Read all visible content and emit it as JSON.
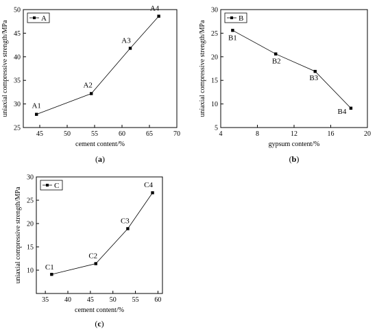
{
  "chart_data": [
    {
      "type": "line",
      "panel_label": "(a)",
      "panel_prefix": "(",
      "panel_letter": "a",
      "panel_suffix": ")",
      "xlabel": "cement content/%",
      "ylabel": "uniaxial compressive strength/MPa",
      "xlim": [
        42,
        70
      ],
      "ylim": [
        25,
        50
      ],
      "xticks": [
        45,
        50,
        55,
        60,
        65,
        70
      ],
      "yticks": [
        25,
        30,
        35,
        40,
        45,
        50
      ],
      "legend_position": "top-left",
      "series": [
        {
          "name": "A",
          "x": [
            44.4,
            54.4,
            61.5,
            66.7
          ],
          "y": [
            27.8,
            32.2,
            41.8,
            48.6
          ],
          "point_labels": [
            "A1",
            "A2",
            "A3",
            "A4"
          ]
        }
      ]
    },
    {
      "type": "line",
      "panel_label": "(b)",
      "panel_prefix": "(",
      "panel_letter": "b",
      "panel_suffix": ")",
      "xlabel": "gypsum content/%",
      "ylabel": "uniaxial compressive strength/MPa",
      "xlim": [
        4,
        20
      ],
      "ylim": [
        5,
        30
      ],
      "xticks": [
        4,
        8,
        12,
        16,
        20
      ],
      "yticks": [
        5,
        10,
        15,
        20,
        25,
        30
      ],
      "legend_position": "top-left",
      "series": [
        {
          "name": "B",
          "x": [
            5.3,
            10.0,
            14.3,
            18.2
          ],
          "y": [
            25.6,
            20.6,
            16.9,
            9.1
          ],
          "point_labels": [
            "B1",
            "B2",
            "B3",
            "B4"
          ]
        }
      ]
    },
    {
      "type": "line",
      "panel_label": "(c)",
      "panel_prefix": "(",
      "panel_letter": "c",
      "panel_suffix": ")",
      "xlabel": "cement content/%",
      "ylabel": "uniaxial compressive strength/MPa",
      "xlim": [
        33,
        61
      ],
      "ylim": [
        5,
        30
      ],
      "xticks": [
        35,
        40,
        45,
        50,
        55,
        60
      ],
      "yticks": [
        10,
        15,
        20,
        25,
        30
      ],
      "legend_position": "top-left",
      "series": [
        {
          "name": "C",
          "x": [
            36.4,
            46.2,
            53.3,
            58.8
          ],
          "y": [
            9.1,
            11.4,
            18.9,
            26.6
          ],
          "point_labels": [
            "C1",
            "C2",
            "C3",
            "C4"
          ]
        }
      ]
    }
  ]
}
